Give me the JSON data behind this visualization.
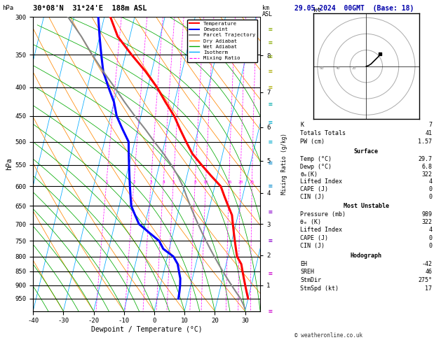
{
  "title_left": "30°08'N  31°24'E  188m ASL",
  "title_right": "29.05.2024  00GMT  (Base: 18)",
  "xlabel": "Dewpoint / Temperature (°C)",
  "ylabel_left": "hPa",
  "pressure_ticks": [
    300,
    350,
    400,
    450,
    500,
    550,
    600,
    650,
    700,
    750,
    800,
    850,
    900,
    950
  ],
  "temp_ticks": [
    -40,
    -30,
    -20,
    -10,
    0,
    10,
    20,
    30
  ],
  "tmin": -40,
  "tmax": 35,
  "km_ticks": [
    1,
    2,
    3,
    4,
    5,
    6,
    7,
    8
  ],
  "km_pressures": [
    899,
    795,
    700,
    616,
    540,
    471,
    408,
    351
  ],
  "mixing_ratio_lines": [
    1,
    2,
    3,
    4,
    5,
    8,
    10,
    16,
    20,
    25
  ],
  "mixing_ratio_label_p": 590,
  "skew_factor": 45,
  "temperature_profile": {
    "pressure": [
      300,
      325,
      350,
      375,
      400,
      425,
      450,
      475,
      500,
      525,
      550,
      575,
      600,
      625,
      650,
      675,
      700,
      725,
      750,
      775,
      800,
      825,
      850,
      875,
      900,
      925,
      950
    ],
    "temperature": [
      -38,
      -34,
      -28,
      -22,
      -17,
      -13,
      -9,
      -6,
      -3,
      0,
      4,
      8,
      12,
      14,
      16,
      18,
      19,
      20,
      21,
      22,
      23,
      25,
      26,
      27,
      28,
      29,
      30
    ]
  },
  "dewpoint_profile": {
    "pressure": [
      300,
      325,
      350,
      375,
      400,
      425,
      450,
      475,
      500,
      525,
      550,
      575,
      600,
      625,
      650,
      675,
      700,
      725,
      750,
      775,
      800,
      825,
      850,
      875,
      900,
      925,
      950
    ],
    "dewpoint": [
      -42,
      -40,
      -38,
      -36,
      -33,
      -30,
      -28,
      -25,
      -22,
      -21,
      -20,
      -19,
      -18,
      -17,
      -16,
      -14,
      -12,
      -8,
      -4,
      -2,
      2,
      4,
      5,
      6,
      6.5,
      6.8,
      7
    ]
  },
  "parcel_profile": {
    "pressure": [
      989,
      975,
      950,
      925,
      900,
      875,
      850,
      825,
      800,
      775,
      750,
      725,
      700,
      675,
      650,
      625,
      600,
      575,
      550,
      525,
      500,
      475,
      450,
      425,
      400,
      375,
      350,
      325,
      300
    ],
    "temperature": [
      29.7,
      29.0,
      27.5,
      25.5,
      23.5,
      21.5,
      19.5,
      17.5,
      15.5,
      13.5,
      11.5,
      9.5,
      7.5,
      5.5,
      3.5,
      1.5,
      -0.5,
      -3,
      -6,
      -9.5,
      -13.5,
      -17.5,
      -22,
      -26.5,
      -31,
      -36,
      -41,
      -46,
      -52
    ]
  },
  "colors": {
    "temperature": "#ff0000",
    "dewpoint": "#0000ff",
    "parcel": "#888888",
    "dry_adiabat": "#ff8800",
    "wet_adiabat": "#00aa00",
    "isotherm": "#00aaff",
    "mixing_ratio": "#ff00ff",
    "background": "#ffffff"
  },
  "wind_barb_pressures": [
    300,
    350,
    400,
    450,
    500,
    550,
    600,
    650,
    700,
    750,
    800,
    850,
    900,
    950
  ],
  "wind_barb_colors": [
    "#cc00cc",
    "#cc00cc",
    "#8800cc",
    "#8800cc",
    "#0088cc",
    "#0088cc",
    "#00aacc",
    "#00aacc",
    "#00aaaa",
    "#aaaa00",
    "#aaaa00",
    "#88aa00",
    "#88aa00",
    "#88aa00"
  ],
  "hodograph": {
    "circles": [
      20,
      40,
      60
    ],
    "hodo_u": [
      0,
      3,
      6,
      9,
      12,
      15,
      17
    ],
    "hodo_v": [
      0,
      1,
      3,
      6,
      9,
      12,
      15
    ],
    "EH": -42,
    "SREH": 46,
    "StmDir": 275,
    "StmSpd": 17
  },
  "stability_indices": {
    "K": 7,
    "Totals_Totals": 41,
    "PW_cm": 1.57,
    "Surface_Temp": 29.7,
    "Surface_Dewp": 6.8,
    "Surface_theta_e": 322,
    "Surface_LiftedIndex": 4,
    "Surface_CAPE": 0,
    "Surface_CIN": 0,
    "MU_Pressure": 989,
    "MU_theta_e": 322,
    "MU_LiftedIndex": 4,
    "MU_CAPE": 0,
    "MU_CIN": 0
  },
  "copyright": "© weatheronline.co.uk"
}
